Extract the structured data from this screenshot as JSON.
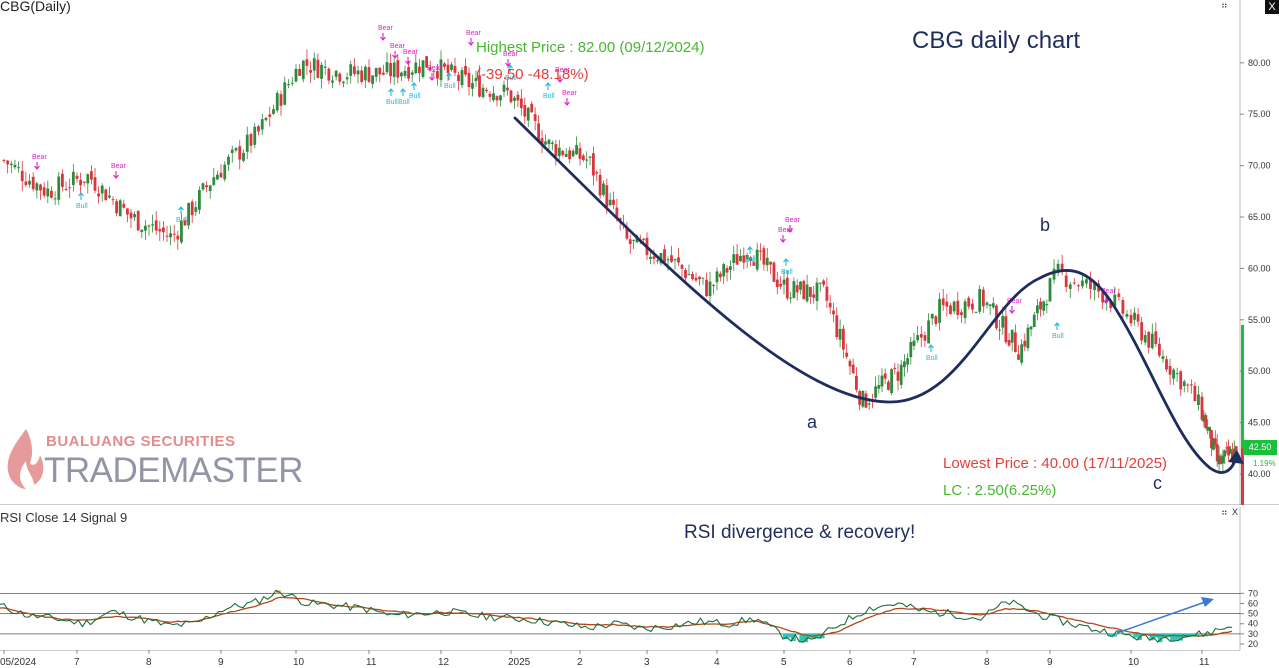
{
  "price_pane": {
    "title": "CBG(Daily)",
    "chart_title": "CBG daily chart",
    "highest_label": "Highest Price : 82.00 (09/12/2024)",
    "drawdown_label": "(-39.50 -48.18%)",
    "lowest_label": "Lowest Price : 40.00 (17/11/2025)",
    "lc_label": "LC : 2.50(6.25%)",
    "wave_a": "a",
    "wave_b": "b",
    "wave_c": "c",
    "last_price": "42.50",
    "last_change": "1.19%",
    "signal_bear": "Bear",
    "signal_bull": "Bull"
  },
  "rsi_pane": {
    "title": "RSI Close 14 Signal 9",
    "note": "RSI divergence & recovery!"
  },
  "logo": {
    "company": "BUALUANG SECURITIES",
    "brand_part1": "TRADE",
    "brand_part2": "MASTER"
  },
  "controls": {
    "close_glyph": "X",
    "pane_glyph": "⠶"
  },
  "colors": {
    "up": "#2e8b3e",
    "down": "#d9363e",
    "curve": "#1f2d5c",
    "rsi_line": "#1c6e3a",
    "rsi_signal": "#b5481b",
    "oversold_fill": "#2fc6b8",
    "overbought_fill": "#f0a060",
    "bear_marker": "#e020c8",
    "bull_marker": "#20b8d8",
    "annotation_arrow": "#3a7ad6"
  },
  "chart_data": [
    {
      "type": "candlestick",
      "title": "CBG daily chart",
      "y_ticks": [
        40,
        45,
        50,
        55,
        60,
        65,
        70,
        75,
        80
      ],
      "ylim": [
        38.5,
        83.5
      ],
      "x_ticks": [
        "05/2024",
        "7",
        "8",
        "9",
        "10",
        "11",
        "12",
        "2025",
        "2",
        "3",
        "4",
        "5",
        "6",
        "7",
        "8",
        "9",
        "10",
        "11"
      ],
      "x_range_months": [
        "2024-06",
        "2025-11"
      ],
      "close_path_approx": [
        {
          "month": "2024-06",
          "close": 70.5
        },
        {
          "month": "2024-07",
          "close": 67.5
        },
        {
          "month": "2024-07b",
          "close": 69.0
        },
        {
          "month": "2024-08",
          "close": 65.0
        },
        {
          "month": "2024-08b",
          "close": 63.0
        },
        {
          "month": "2024-09",
          "close": 69.0
        },
        {
          "month": "2024-09b",
          "close": 73.0
        },
        {
          "month": "2024-10",
          "close": 80.0
        },
        {
          "month": "2024-10b",
          "close": 79.0
        },
        {
          "month": "2024-11",
          "close": 79.0
        },
        {
          "month": "2024-12",
          "close": 80.0
        },
        {
          "month": "2025-01",
          "close": 78.0
        },
        {
          "month": "2025-02",
          "close": 77.0
        },
        {
          "month": "2025-02b",
          "close": 72.0
        },
        {
          "month": "2025-03",
          "close": 70.5
        },
        {
          "month": "2025-03b",
          "close": 62.5
        },
        {
          "month": "2025-04",
          "close": 61.0
        },
        {
          "month": "2025-04b",
          "close": 58.0
        },
        {
          "month": "2025-05",
          "close": 62.0
        },
        {
          "month": "2025-05b",
          "close": 58.0
        },
        {
          "month": "2025-06",
          "close": 57.5
        },
        {
          "month": "2025-06b",
          "close": 47.0
        },
        {
          "month": "2025-07",
          "close": 50.0
        },
        {
          "month": "2025-07b",
          "close": 56.0
        },
        {
          "month": "2025-08",
          "close": 57.0
        },
        {
          "month": "2025-08b",
          "close": 52.0
        },
        {
          "month": "2025-09",
          "close": 59.5
        },
        {
          "month": "2025-09b",
          "close": 57.5
        },
        {
          "month": "2025-10",
          "close": 53.0
        },
        {
          "month": "2025-10b",
          "close": 48.0
        },
        {
          "month": "2025-11",
          "close": 41.0
        },
        {
          "month": "2025-11b",
          "close": 42.5
        }
      ],
      "highest": {
        "value": 82.0,
        "date": "09/12/2024"
      },
      "lowest": {
        "value": 40.0,
        "date": "17/11/2025"
      },
      "waves": [
        {
          "label": "a",
          "approx_price": 47.0
        },
        {
          "label": "b",
          "approx_price": 59.5
        },
        {
          "label": "c",
          "approx_price": 40.0
        }
      ]
    },
    {
      "type": "line",
      "title": "RSI Close 14 Signal 9",
      "y_ticks": [
        20,
        30,
        40,
        50,
        60,
        70
      ],
      "ylim": [
        18,
        78
      ],
      "reference_lines": [
        30,
        50,
        70
      ],
      "rsi_path_approx": [
        58,
        48,
        45,
        40,
        52,
        45,
        38,
        40,
        55,
        60,
        72,
        60,
        58,
        55,
        48,
        50,
        52,
        48,
        46,
        44,
        40,
        36,
        40,
        35,
        38,
        42,
        40,
        45,
        28,
        22,
        40,
        55,
        60,
        52,
        50,
        45,
        62,
        50,
        42,
        35,
        30,
        25,
        27,
        30,
        38
      ],
      "signal_path_approx": [
        56,
        50,
        45,
        43,
        47,
        46,
        42,
        42,
        50,
        56,
        66,
        64,
        58,
        56,
        52,
        50,
        51,
        50,
        47,
        45,
        42,
        39,
        39,
        37,
        37,
        40,
        40,
        43,
        35,
        27,
        33,
        46,
        55,
        55,
        52,
        48,
        55,
        53,
        46,
        40,
        34,
        29,
        28,
        28,
        32
      ]
    }
  ]
}
